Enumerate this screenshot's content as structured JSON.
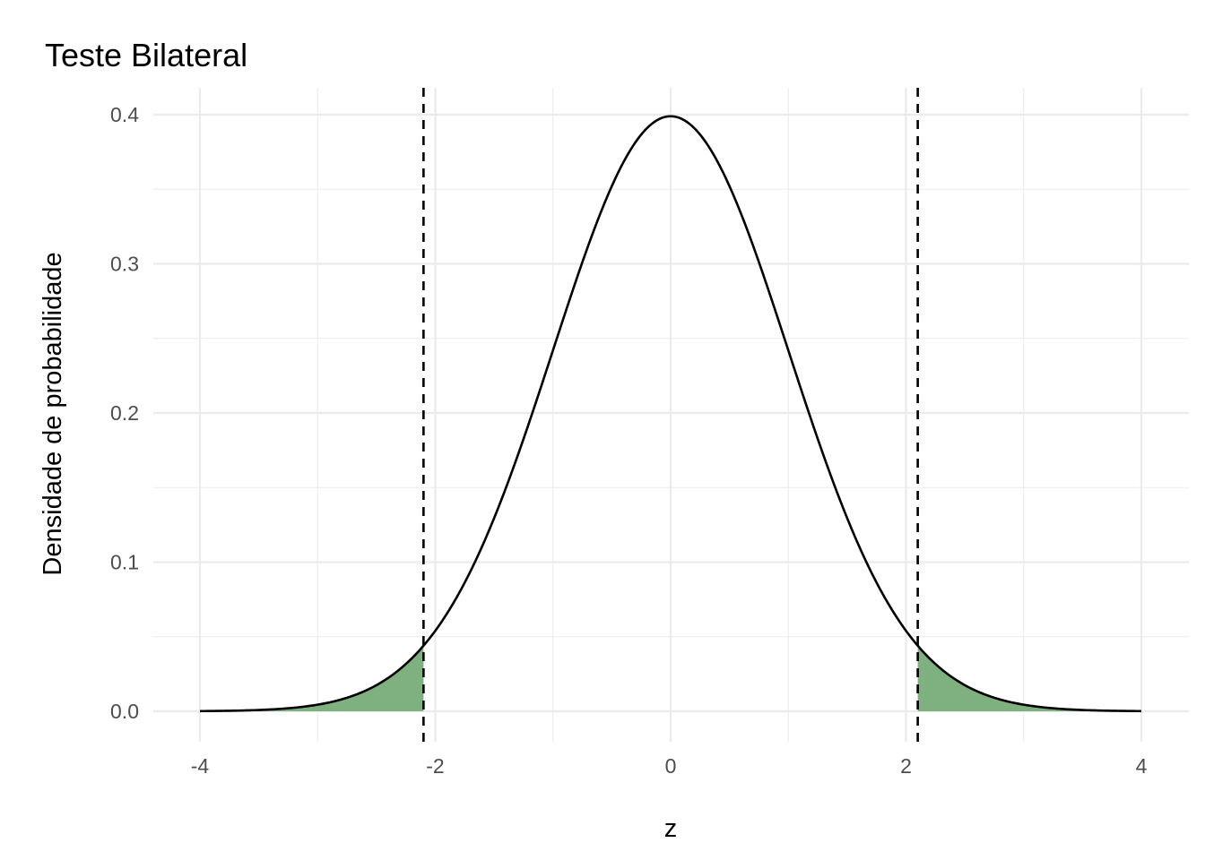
{
  "chart_data": {
    "type": "area",
    "title": "Teste Bilateral",
    "xlabel": "z",
    "ylabel": "Densidade de probabilidade",
    "xlim": [
      -4,
      4
    ],
    "ylim": [
      0,
      0.4
    ],
    "x_ticks": [
      -4,
      -2,
      0,
      2,
      4
    ],
    "x_tick_labels": [
      "-4",
      "-2",
      "0",
      "2",
      "4"
    ],
    "y_ticks": [
      0,
      0.1,
      0.2,
      0.3,
      0.4
    ],
    "y_tick_labels": [
      "0.0",
      "0.1",
      "0.2",
      "0.3",
      "0.4"
    ],
    "grid": true,
    "series": [
      {
        "distribution": "standard normal density",
        "x_range": [
          -4,
          4
        ],
        "color": "#000000"
      }
    ],
    "critical_values": [
      -2.1,
      2.1
    ],
    "shaded_regions": [
      {
        "from": -4,
        "to": -2.1,
        "color": "#7fb07f"
      },
      {
        "from": 2.1,
        "to": 4,
        "color": "#7fb07f"
      }
    ],
    "critical_line_style": "dashed"
  }
}
